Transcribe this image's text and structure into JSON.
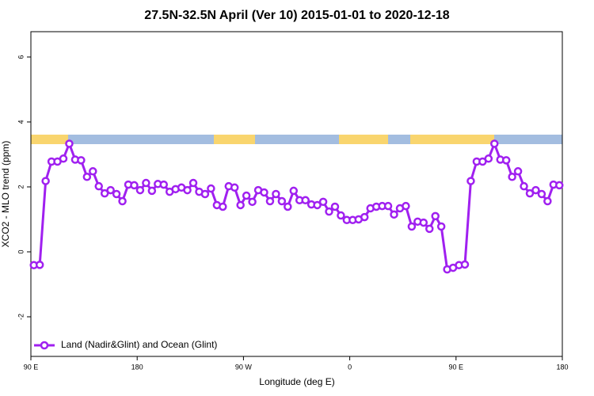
{
  "chart_data": {
    "type": "line",
    "title": "27.5N-32.5N April (Ver 10)   2015-01-01 to 2020-12-18",
    "x_label": "Longitude (deg E)",
    "y_label": "XCO2 - MLO trend (ppm)",
    "xlim": [
      90,
      540
    ],
    "xticks": [
      {
        "value": 90,
        "label": "90 E"
      },
      {
        "value": 180,
        "label": "180"
      },
      {
        "value": 270,
        "label": "90 W"
      },
      {
        "value": 360,
        "label": "0"
      },
      {
        "value": 450,
        "label": "90 E"
      },
      {
        "value": 540,
        "label": "180"
      }
    ],
    "ylim": [
      -3.22,
      6.78
    ],
    "yticks": [
      -2,
      0,
      2,
      4,
      6
    ],
    "legend": "bottom-left",
    "x": [
      92.5,
      97.5,
      102.5,
      107.5,
      112.5,
      117.5,
      122.5,
      127.5,
      132.5,
      137.5,
      142.5,
      147.5,
      152.5,
      157.5,
      162.5,
      167.5,
      172.5,
      177.5,
      182.5,
      187.5,
      192.5,
      197.5,
      202.5,
      207.5,
      212.5,
      217.5,
      222.5,
      227.5,
      232.5,
      237.5,
      242.5,
      247.5,
      252.5,
      257.5,
      262.5,
      267.5,
      272.5,
      277.5,
      282.5,
      287.5,
      292.5,
      297.5,
      302.5,
      307.5,
      312.5,
      317.5,
      322.5,
      327.5,
      332.5,
      337.5,
      342.5,
      347.5,
      352.5,
      357.5,
      362.5,
      367.5,
      372.5,
      377.5,
      382.5,
      387.5,
      392.5,
      397.5,
      402.5,
      407.5,
      412.5,
      417.5,
      422.5,
      427.5,
      432.5,
      437.5,
      442.5,
      447.5,
      452.5,
      457.5,
      462.5,
      467.5,
      472.5,
      477.5,
      482.5,
      487.5,
      492.5,
      497.5,
      502.5,
      507.5,
      512.5,
      517.5,
      522.5,
      527.5,
      532.5,
      537.5
    ],
    "series": [
      {
        "name": "Land (Nadir&Glint) and Ocean (Glint)",
        "color": "#a020f0",
        "values": [
          -0.41,
          -0.4,
          2.18,
          2.78,
          2.78,
          2.87,
          3.33,
          2.84,
          2.82,
          2.31,
          2.48,
          2.02,
          1.8,
          1.9,
          1.78,
          1.56,
          2.07,
          2.05,
          1.9,
          2.12,
          1.88,
          2.09,
          2.07,
          1.85,
          1.93,
          1.98,
          1.9,
          2.12,
          1.85,
          1.78,
          1.95,
          1.44,
          1.39,
          2.02,
          1.98,
          1.44,
          1.73,
          1.54,
          1.9,
          1.83,
          1.56,
          1.78,
          1.56,
          1.39,
          1.88,
          1.59,
          1.59,
          1.46,
          1.44,
          1.54,
          1.24,
          1.39,
          1.12,
          0.98,
          0.98,
          1.0,
          1.07,
          1.34,
          1.39,
          1.41,
          1.41,
          1.15,
          1.34,
          1.41,
          0.78,
          0.93,
          0.9,
          0.71,
          1.1,
          0.78,
          -0.54,
          -0.49,
          -0.41,
          -0.39,
          2.18,
          2.78,
          2.78,
          2.87,
          3.33,
          2.84,
          2.82,
          2.31,
          2.48,
          2.02,
          1.8,
          1.9,
          1.78,
          1.56,
          2.07,
          2.05
        ]
      }
    ]
  }
}
